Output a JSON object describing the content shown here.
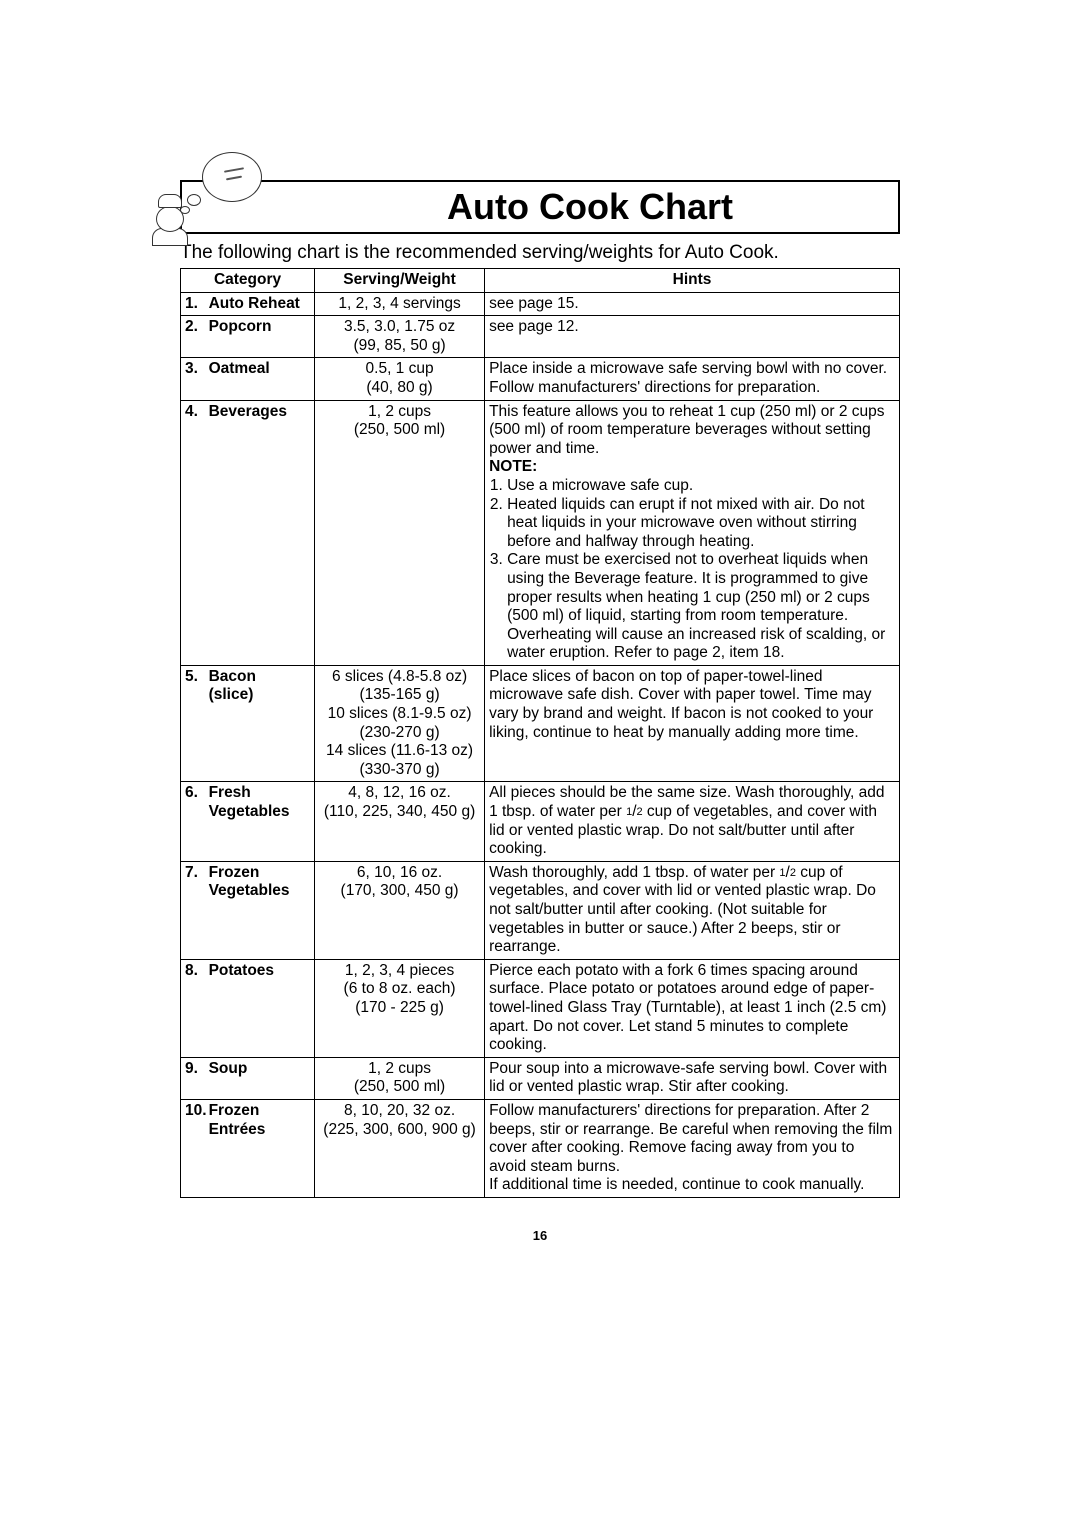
{
  "title": "Auto Cook Chart",
  "subtitle": "The following chart is the recommended serving/weights for Auto Cook.",
  "headers": {
    "category": "Category",
    "serving": "Serving/Weight",
    "hints": "Hints"
  },
  "rows": [
    {
      "num": "1.",
      "category": "Auto Reheat",
      "serving": "1, 2, 3, 4 servings",
      "hints": "see page 15."
    },
    {
      "num": "2.",
      "category": "Popcorn",
      "serving": "3.5, 3.0, 1.75 oz\n(99, 85, 50 g)",
      "hints": "see page 12."
    },
    {
      "num": "3.",
      "category": "Oatmeal",
      "serving": "0.5, 1 cup\n(40, 80 g)",
      "hints": "Place inside a microwave safe serving bowl with no cover. Follow manufacturers' directions for preparation."
    },
    {
      "num": "4.",
      "category": "Beverages",
      "serving": "1, 2 cups\n(250, 500 ml)",
      "hints_intro": "This feature allows you to reheat 1 cup (250 ml) or 2 cups (500 ml) of room temperature beverages without setting power and time.",
      "note_label": "NOTE:",
      "notes": [
        "Use a microwave safe cup.",
        "Heated liquids can erupt if not mixed with air. Do not heat liquids in your microwave oven without stirring before and halfway through heating.",
        "Care must be exercised not to overheat liquids when using the Beverage feature. It is programmed to give proper results when heating 1 cup (250 ml) or 2 cups (500 ml) of liquid, starting from room temperature. Overheating will cause an increased risk of scalding, or water eruption. Refer to page 2, item 18."
      ]
    },
    {
      "num": "5.",
      "category": "Bacon\n(slice)",
      "serving": "6 slices (4.8-5.8 oz)\n(135-165 g)\n10 slices (8.1-9.5 oz)\n(230-270 g)\n14 slices (11.6-13 oz)\n(330-370 g)",
      "hints": "Place slices of bacon on top of paper-towel-lined microwave safe dish. Cover with paper towel. Time may vary by brand and weight. If bacon is not cooked to your liking, continue to heat by manually adding more time."
    },
    {
      "num": "6.",
      "category": "Fresh\nVegetables",
      "serving": "4, 8, 12, 16 oz.\n(110, 225, 340, 450 g)",
      "hints_pre": "All pieces should be the same size. Wash thoroughly, add 1 tbsp. of water per ",
      "hints_frac": "1/2",
      "hints_post": " cup of vegetables, and cover with lid or vented plastic wrap. Do not salt/butter until after cooking."
    },
    {
      "num": "7.",
      "category": "Frozen\nVegetables",
      "serving": "6, 10, 16 oz.\n(170, 300, 450 g)",
      "hints_pre": "Wash thoroughly, add 1 tbsp. of water per ",
      "hints_frac": "1/2",
      "hints_post": " cup of vegetables, and cover with lid or vented plastic wrap. Do not salt/butter until after cooking. (Not suitable for vegetables in butter or sauce.) After 2 beeps, stir or rearrange."
    },
    {
      "num": "8.",
      "category": "Potatoes",
      "serving": "1, 2, 3, 4 pieces\n(6 to 8 oz. each)\n(170 - 225 g)",
      "hints": "Pierce each potato with a fork 6 times spacing around surface. Place potato or potatoes around edge of paper-towel-lined Glass Tray (Turntable), at least 1 inch (2.5 cm) apart. Do not cover. Let stand 5 minutes to complete cooking."
    },
    {
      "num": "9.",
      "category": "Soup",
      "serving": "1, 2 cups\n(250, 500 ml)",
      "hints": "Pour soup into a microwave-safe serving bowl. Cover with lid or vented plastic wrap. Stir after cooking."
    },
    {
      "num": "10.",
      "category": "Frozen\nEntrées",
      "serving": "8, 10, 20, 32 oz.\n(225, 300, 600, 900 g)",
      "hints": "Follow manufacturers' directions for preparation. After 2 beeps, stir or rearrange. Be careful when removing the film cover after cooking. Remove facing away from you to avoid steam burns.\nIf additional time is needed, continue to cook manually."
    }
  ],
  "page_number": "16"
}
